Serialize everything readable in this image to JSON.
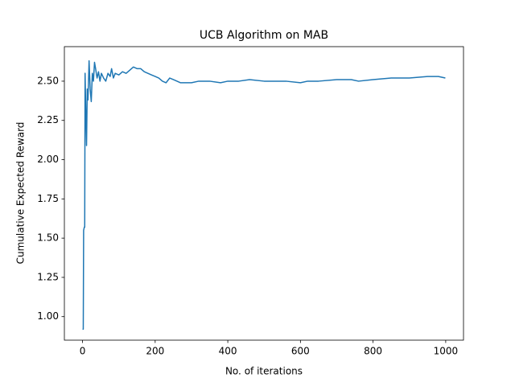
{
  "chart_data": {
    "type": "line",
    "title": "UCB Algorithm on MAB",
    "x_label": "No. of iterations",
    "y_label": "Cumulative Expected Reward",
    "color": "#1f77b4",
    "x": [
      0,
      2,
      3,
      5,
      6,
      7,
      9,
      11,
      13,
      15,
      18,
      21,
      24,
      27,
      30,
      33,
      36,
      40,
      44,
      48,
      52,
      58,
      64,
      70,
      76,
      80,
      85,
      90,
      100,
      110,
      120,
      130,
      140,
      150,
      160,
      170,
      180,
      190,
      200,
      210,
      220,
      230,
      240,
      250,
      260,
      270,
      300,
      320,
      350,
      380,
      400,
      430,
      460,
      500,
      540,
      560,
      600,
      620,
      650,
      700,
      740,
      760,
      800,
      850,
      900,
      950,
      980,
      999
    ],
    "values": [
      0.92,
      0.92,
      1.55,
      1.57,
      1.57,
      2.55,
      2.3,
      2.09,
      2.45,
      2.38,
      2.63,
      2.45,
      2.37,
      2.55,
      2.5,
      2.62,
      2.58,
      2.52,
      2.56,
      2.5,
      2.55,
      2.52,
      2.5,
      2.55,
      2.53,
      2.58,
      2.52,
      2.55,
      2.54,
      2.56,
      2.55,
      2.57,
      2.59,
      2.58,
      2.58,
      2.56,
      2.55,
      2.54,
      2.53,
      2.52,
      2.5,
      2.49,
      2.52,
      2.51,
      2.5,
      2.49,
      2.49,
      2.5,
      2.5,
      2.49,
      2.5,
      2.5,
      2.51,
      2.5,
      2.5,
      2.5,
      2.49,
      2.5,
      2.5,
      2.51,
      2.51,
      2.5,
      2.51,
      2.52,
      2.52,
      2.53,
      2.53,
      2.52
    ],
    "xlim": [
      -50,
      1049
    ],
    "ylim": [
      0.85,
      2.72
    ],
    "xticks": [
      0,
      200,
      400,
      600,
      800,
      1000
    ],
    "yticks": [
      {
        "value": 1,
        "label": "1.00"
      },
      {
        "value": 1.25,
        "label": "1.25"
      },
      {
        "value": 1.5,
        "label": "1.50"
      },
      {
        "value": 1.75,
        "label": "1.75"
      },
      {
        "value": 2,
        "label": "2.00"
      },
      {
        "value": 2.25,
        "label": "2.25"
      },
      {
        "value": 2.5,
        "label": "2.50"
      }
    ]
  }
}
